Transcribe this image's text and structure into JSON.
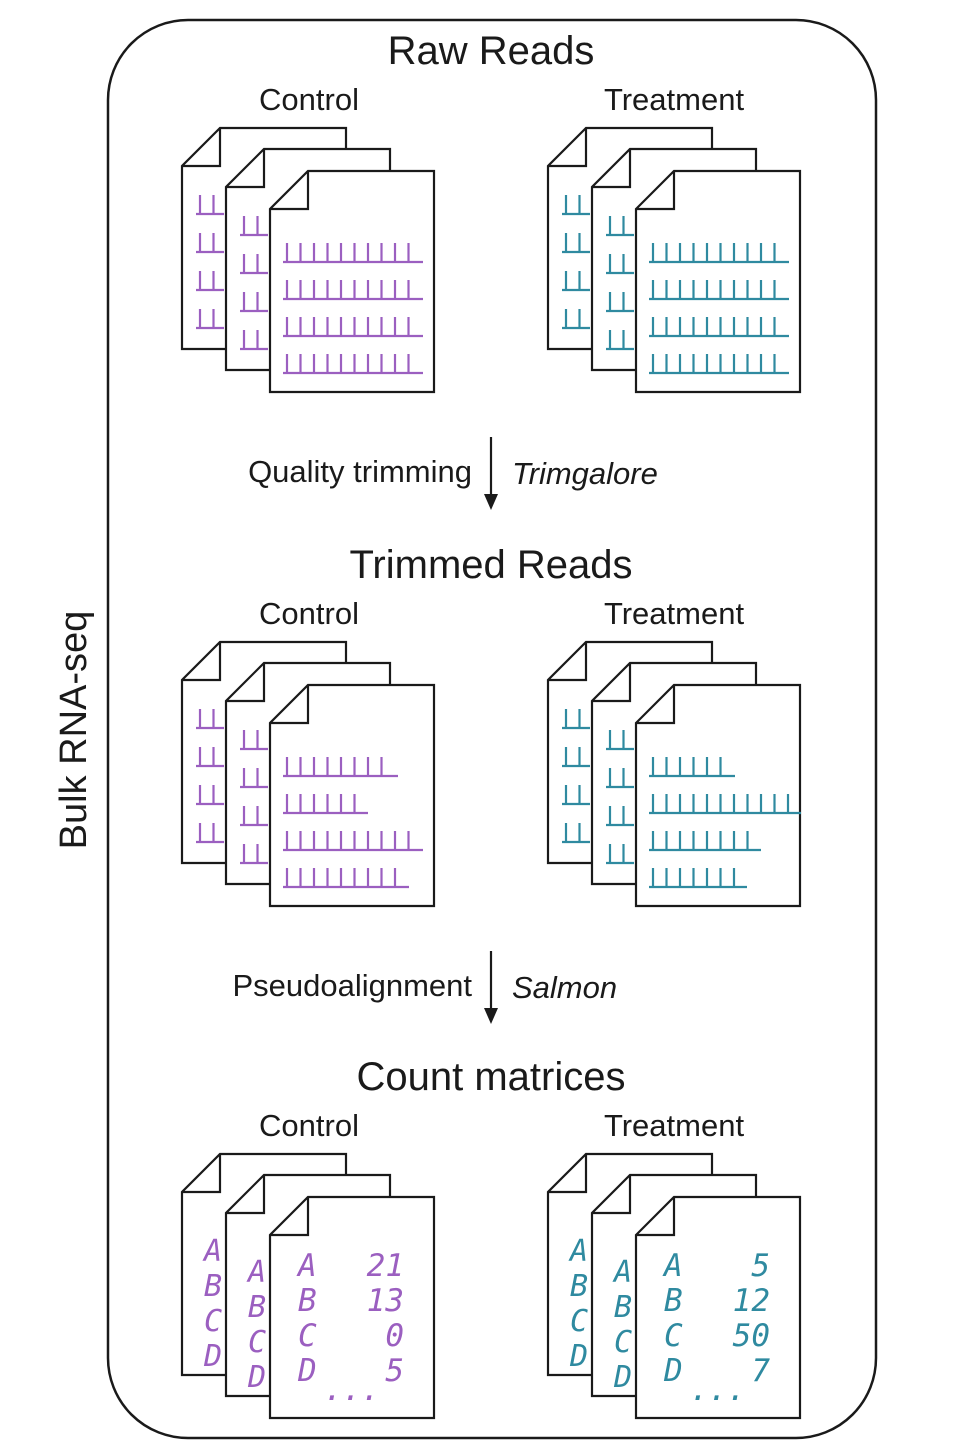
{
  "side_label": "Bulk RNA-seq",
  "colors": {
    "control": "#9b5fc0",
    "treatment": "#2f8aa0",
    "stroke": "#1a1a1a"
  },
  "stages": [
    {
      "title": "Raw Reads",
      "groups": [
        "Control",
        "Treatment"
      ],
      "content": "reads-uniform"
    },
    {
      "title": "Trimmed Reads",
      "groups": [
        "Control",
        "Treatment"
      ],
      "content": "reads-trimmed"
    },
    {
      "title": "Count matrices",
      "groups": [
        "Control",
        "Treatment"
      ],
      "content": "counts"
    }
  ],
  "steps": [
    {
      "label": "Quality trimming",
      "tool": "Trimgalore"
    },
    {
      "label": "Pseudoalignment",
      "tool": "Salmon"
    }
  ],
  "counts": {
    "genes": [
      "A",
      "B",
      "C",
      "D"
    ],
    "control": [
      "21",
      "13",
      "0",
      "5"
    ],
    "treatment": [
      "5",
      "12",
      "50",
      "7"
    ],
    "ellipsis": "..."
  }
}
